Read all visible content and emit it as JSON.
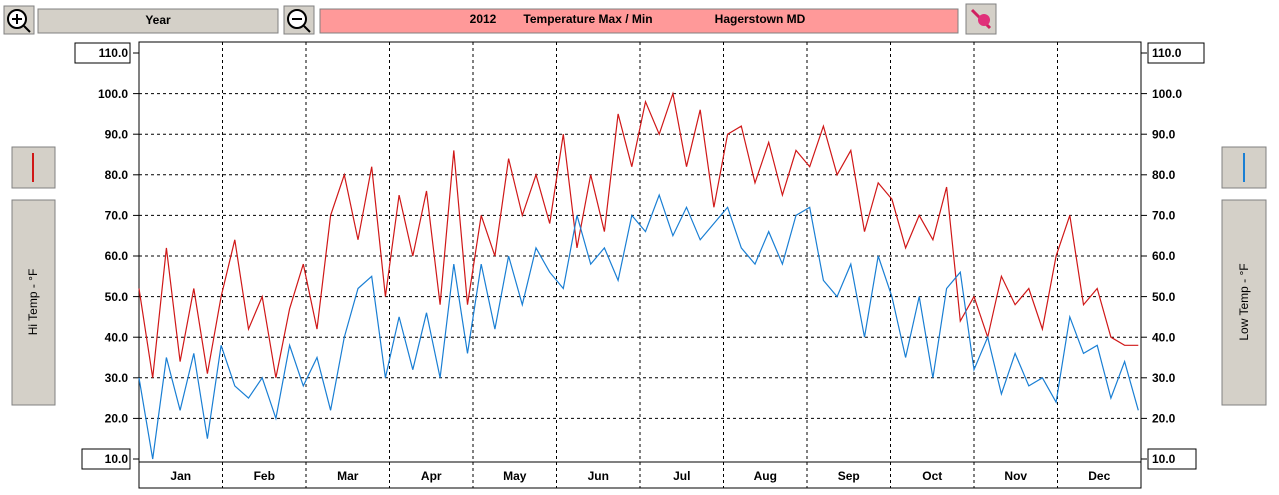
{
  "toolbar": {
    "range": "Year",
    "title": [
      "2012",
      "Temperature Max / Min",
      "Hagerstown MD"
    ]
  },
  "side_labels": {
    "left": "Hi Temp - °F",
    "right": "Low Temp - °F"
  },
  "chart_data": {
    "type": "line",
    "categories": [
      "Jan",
      "Feb",
      "Mar",
      "Apr",
      "May",
      "Jun",
      "Jul",
      "Aug",
      "Sep",
      "Oct",
      "Nov",
      "Dec"
    ],
    "x": [
      0,
      5,
      10,
      15,
      20,
      25,
      30,
      35,
      40,
      45,
      50,
      55,
      60,
      65,
      70,
      75,
      80,
      85,
      90,
      95,
      100,
      105,
      110,
      115,
      120,
      125,
      130,
      135,
      140,
      145,
      150,
      155,
      160,
      165,
      170,
      175,
      180,
      185,
      190,
      195,
      200,
      205,
      210,
      215,
      220,
      225,
      230,
      235,
      240,
      245,
      250,
      255,
      260,
      265,
      270,
      275,
      280,
      285,
      290,
      295,
      300,
      305,
      310,
      315,
      320,
      325,
      330,
      335,
      340,
      345,
      350,
      355,
      360,
      365
    ],
    "xlim": [
      0,
      366
    ],
    "ylim": [
      10,
      110
    ],
    "yticks": [
      {
        "value": 10,
        "label": "10.0"
      },
      {
        "value": 20,
        "label": "20.0"
      },
      {
        "value": 30,
        "label": "30.0"
      },
      {
        "value": 40,
        "label": "40.0"
      },
      {
        "value": 50,
        "label": "50.0"
      },
      {
        "value": 60,
        "label": "60.0"
      },
      {
        "value": 70,
        "label": "70.0"
      },
      {
        "value": 80,
        "label": "80.0"
      },
      {
        "value": 90,
        "label": "90.0"
      },
      {
        "value": 100,
        "label": "100.0"
      },
      {
        "value": 110,
        "label": "110.0"
      }
    ],
    "y2lim": [
      10,
      110
    ],
    "y2ticks": [
      {
        "value": 10,
        "label": "10.0"
      },
      {
        "value": 20,
        "label": "20.0"
      },
      {
        "value": 30,
        "label": "30.0"
      },
      {
        "value": 40,
        "label": "40.0"
      },
      {
        "value": 50,
        "label": "50.0"
      },
      {
        "value": 60,
        "label": "60.0"
      },
      {
        "value": 70,
        "label": "70.0"
      },
      {
        "value": 80,
        "label": "80.0"
      },
      {
        "value": 90,
        "label": "90.0"
      },
      {
        "value": 100,
        "label": "100.0"
      },
      {
        "value": 110,
        "label": "110.0"
      }
    ],
    "grid": true,
    "series": [
      {
        "name": "Hi Temp - °F",
        "color": "#d01818",
        "values": [
          52,
          30,
          62,
          34,
          52,
          31,
          50,
          64,
          42,
          50,
          30,
          47,
          58,
          42,
          70,
          80,
          64,
          82,
          50,
          75,
          60,
          76,
          48,
          86,
          48,
          70,
          60,
          84,
          70,
          80,
          68,
          90,
          62,
          80,
          66,
          95,
          82,
          98,
          90,
          100,
          82,
          96,
          72,
          90,
          92,
          78,
          88,
          75,
          86,
          82,
          92,
          80,
          86,
          66,
          78,
          74,
          62,
          70,
          64,
          77,
          44,
          50,
          40,
          55,
          48,
          52,
          42,
          60,
          70,
          48,
          52,
          40,
          38,
          38
        ]
      },
      {
        "name": "Low Temp - °F",
        "color": "#1a7fd4",
        "axis": "y2",
        "values": [
          30,
          10,
          35,
          22,
          36,
          15,
          38,
          28,
          25,
          30,
          20,
          38,
          28,
          35,
          22,
          40,
          52,
          55,
          30,
          45,
          32,
          46,
          30,
          58,
          36,
          58,
          42,
          60,
          48,
          62,
          56,
          52,
          70,
          58,
          62,
          54,
          70,
          66,
          75,
          65,
          72,
          64,
          68,
          72,
          62,
          58,
          66,
          58,
          70,
          72,
          54,
          50,
          58,
          40,
          60,
          50,
          35,
          50,
          30,
          52,
          56,
          32,
          40,
          26,
          36,
          28,
          30,
          24,
          45,
          36,
          38,
          25,
          34,
          22
        ]
      }
    ]
  }
}
